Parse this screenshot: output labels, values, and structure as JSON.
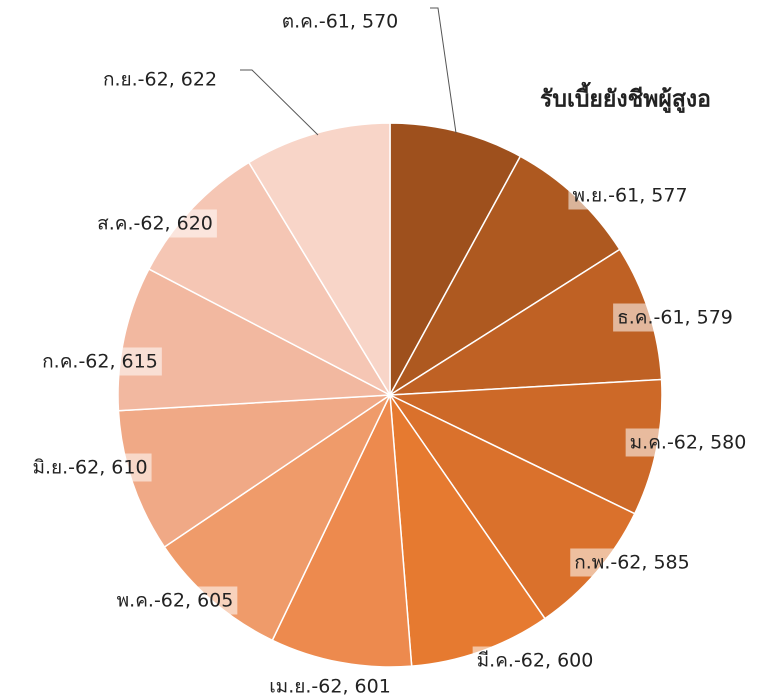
{
  "chart_data": {
    "type": "pie",
    "title": "รับเบี้ยยังชีพผู้สูงอ",
    "values": [
      570,
      577,
      579,
      580,
      585,
      600,
      601,
      605,
      610,
      615,
      620,
      622
    ],
    "value_labels": [
      "ต.ค.-61, 570",
      "พ.ย.-61, 577",
      "ธ.ค.-61, 579",
      "ม.ค.-62, 580",
      "ก.พ.-62, 585",
      "มี.ค.-62, 600",
      "เม.ย.-62, 601",
      "พ.ค.-62, 605",
      "มิ.ย.-62, 610",
      "ก.ค.-62, 615",
      "ส.ค.-62, 620",
      "ก.ย.-62, 622"
    ],
    "colors": [
      "#9e501d",
      "#ae5920",
      "#bf6124",
      "#cd6928",
      "#da712c",
      "#e67a30",
      "#ed8a4e",
      "#ef9b6a",
      "#f0a986",
      "#f2b8a0",
      "#f5c6b4",
      "#f8d5c8"
    ]
  }
}
